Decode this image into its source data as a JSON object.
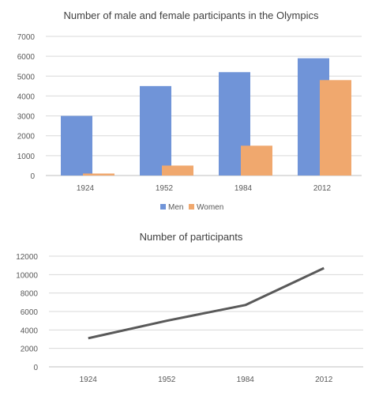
{
  "chart_data": [
    {
      "type": "bar",
      "title": "Number of male and female participants in the Olympics",
      "categories": [
        "1924",
        "1952",
        "1984",
        "2012"
      ],
      "series": [
        {
          "name": "Men",
          "values": [
            3000,
            4500,
            5200,
            5900
          ],
          "color": "#7094d8"
        },
        {
          "name": "Women",
          "values": [
            100,
            500,
            1500,
            4800
          ],
          "color": "#f0a86e"
        }
      ],
      "ylim": [
        0,
        7000
      ],
      "yticks": [
        "0",
        "1000",
        "2000",
        "3000",
        "4000",
        "5000",
        "6000",
        "7000"
      ],
      "grid": true,
      "legend": "bottom"
    },
    {
      "type": "line",
      "title": "Number of participants",
      "categories": [
        "1924",
        "1952",
        "1984",
        "2012"
      ],
      "series": [
        {
          "values": [
            3100,
            5000,
            6700,
            10700
          ],
          "color": "#595959"
        }
      ],
      "ylim": [
        0,
        12000
      ],
      "yticks": [
        "0",
        "2000",
        "4000",
        "6000",
        "8000",
        "10000",
        "12000"
      ],
      "grid": true
    }
  ]
}
